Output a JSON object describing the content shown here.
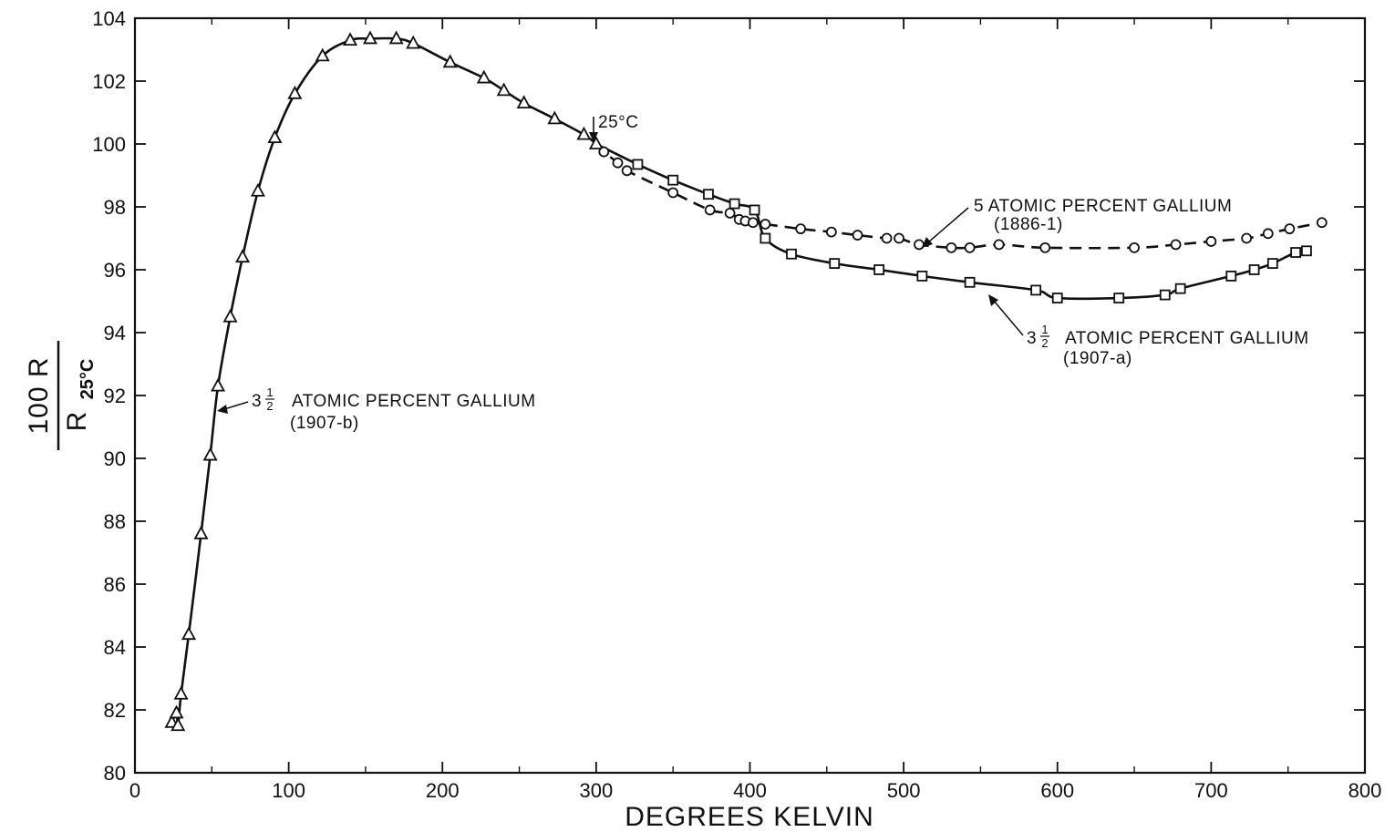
{
  "chart_data": {
    "type": "line",
    "xlabel": "DEGREES KELVIN",
    "ylabel_num": "100 R",
    "ylabel_den": "R",
    "ylabel_den_sub": "25°C",
    "xlim": [
      0,
      800
    ],
    "ylim": [
      80,
      104
    ],
    "xticks": [
      0,
      100,
      200,
      300,
      400,
      500,
      600,
      700,
      800
    ],
    "yticks": [
      80,
      82,
      84,
      86,
      88,
      90,
      92,
      94,
      96,
      98,
      100,
      102,
      104
    ],
    "grid": false,
    "series": [
      {
        "marker": "triangle",
        "line": "solid",
        "x": [
          24,
          27,
          28,
          30,
          35,
          43,
          49,
          54,
          62,
          70,
          80,
          91,
          104,
          122,
          140,
          153,
          170,
          181,
          205,
          227,
          240,
          253,
          273,
          292,
          300
        ],
        "y": [
          81.6,
          81.9,
          81.5,
          82.5,
          84.4,
          87.6,
          90.1,
          92.3,
          94.5,
          96.4,
          98.5,
          100.2,
          101.6,
          102.8,
          103.3,
          103.35,
          103.35,
          103.2,
          102.6,
          102.1,
          101.7,
          101.3,
          100.8,
          100.3,
          100.0
        ]
      },
      {
        "marker": "square",
        "line": "solid",
        "x": [
          300,
          327,
          350,
          373,
          390,
          403,
          410,
          427,
          455,
          484,
          512,
          543,
          586,
          600,
          640,
          670,
          680,
          713,
          728,
          740,
          755,
          762
        ],
        "y": [
          100.0,
          99.35,
          98.85,
          98.4,
          98.1,
          97.9,
          97.0,
          96.5,
          96.2,
          96.0,
          95.8,
          95.6,
          95.35,
          95.1,
          95.1,
          95.2,
          95.4,
          95.8,
          96.0,
          96.2,
          96.55,
          96.6
        ]
      },
      {
        "marker": "circle",
        "line": "dashed",
        "x": [
          300,
          305,
          314,
          320,
          350,
          374,
          387,
          393,
          397,
          402,
          410,
          433,
          453,
          470,
          489,
          497,
          510,
          531,
          543,
          562,
          592,
          650,
          677,
          700,
          723,
          737,
          751,
          772
        ],
        "y": [
          100.0,
          99.75,
          99.4,
          99.15,
          98.45,
          97.9,
          97.8,
          97.6,
          97.55,
          97.5,
          97.45,
          97.3,
          97.2,
          97.1,
          97.0,
          97.0,
          96.8,
          96.7,
          96.7,
          96.8,
          96.7,
          96.7,
          96.8,
          96.9,
          97.0,
          97.15,
          97.3,
          97.5
        ]
      }
    ],
    "annotations": {
      "marker_25c": "25°C",
      "five_atomic_line1": "5 ATOMIC PERCENT GALLIUM",
      "five_atomic_line2": "(1886-1)",
      "three_half_a_prefix": "3",
      "three_half_a_frac_num": "1",
      "three_half_a_frac_den": "2",
      "three_half_a_line1": "ATOMIC PERCENT GALLIUM",
      "three_half_a_line2": "(1907-a)",
      "three_half_b_prefix": "3",
      "three_half_b_frac_num": "1",
      "three_half_b_frac_den": "2",
      "three_half_b_line1": "ATOMIC PERCENT GALLIUM",
      "three_half_b_line2": "(1907-b)"
    }
  }
}
